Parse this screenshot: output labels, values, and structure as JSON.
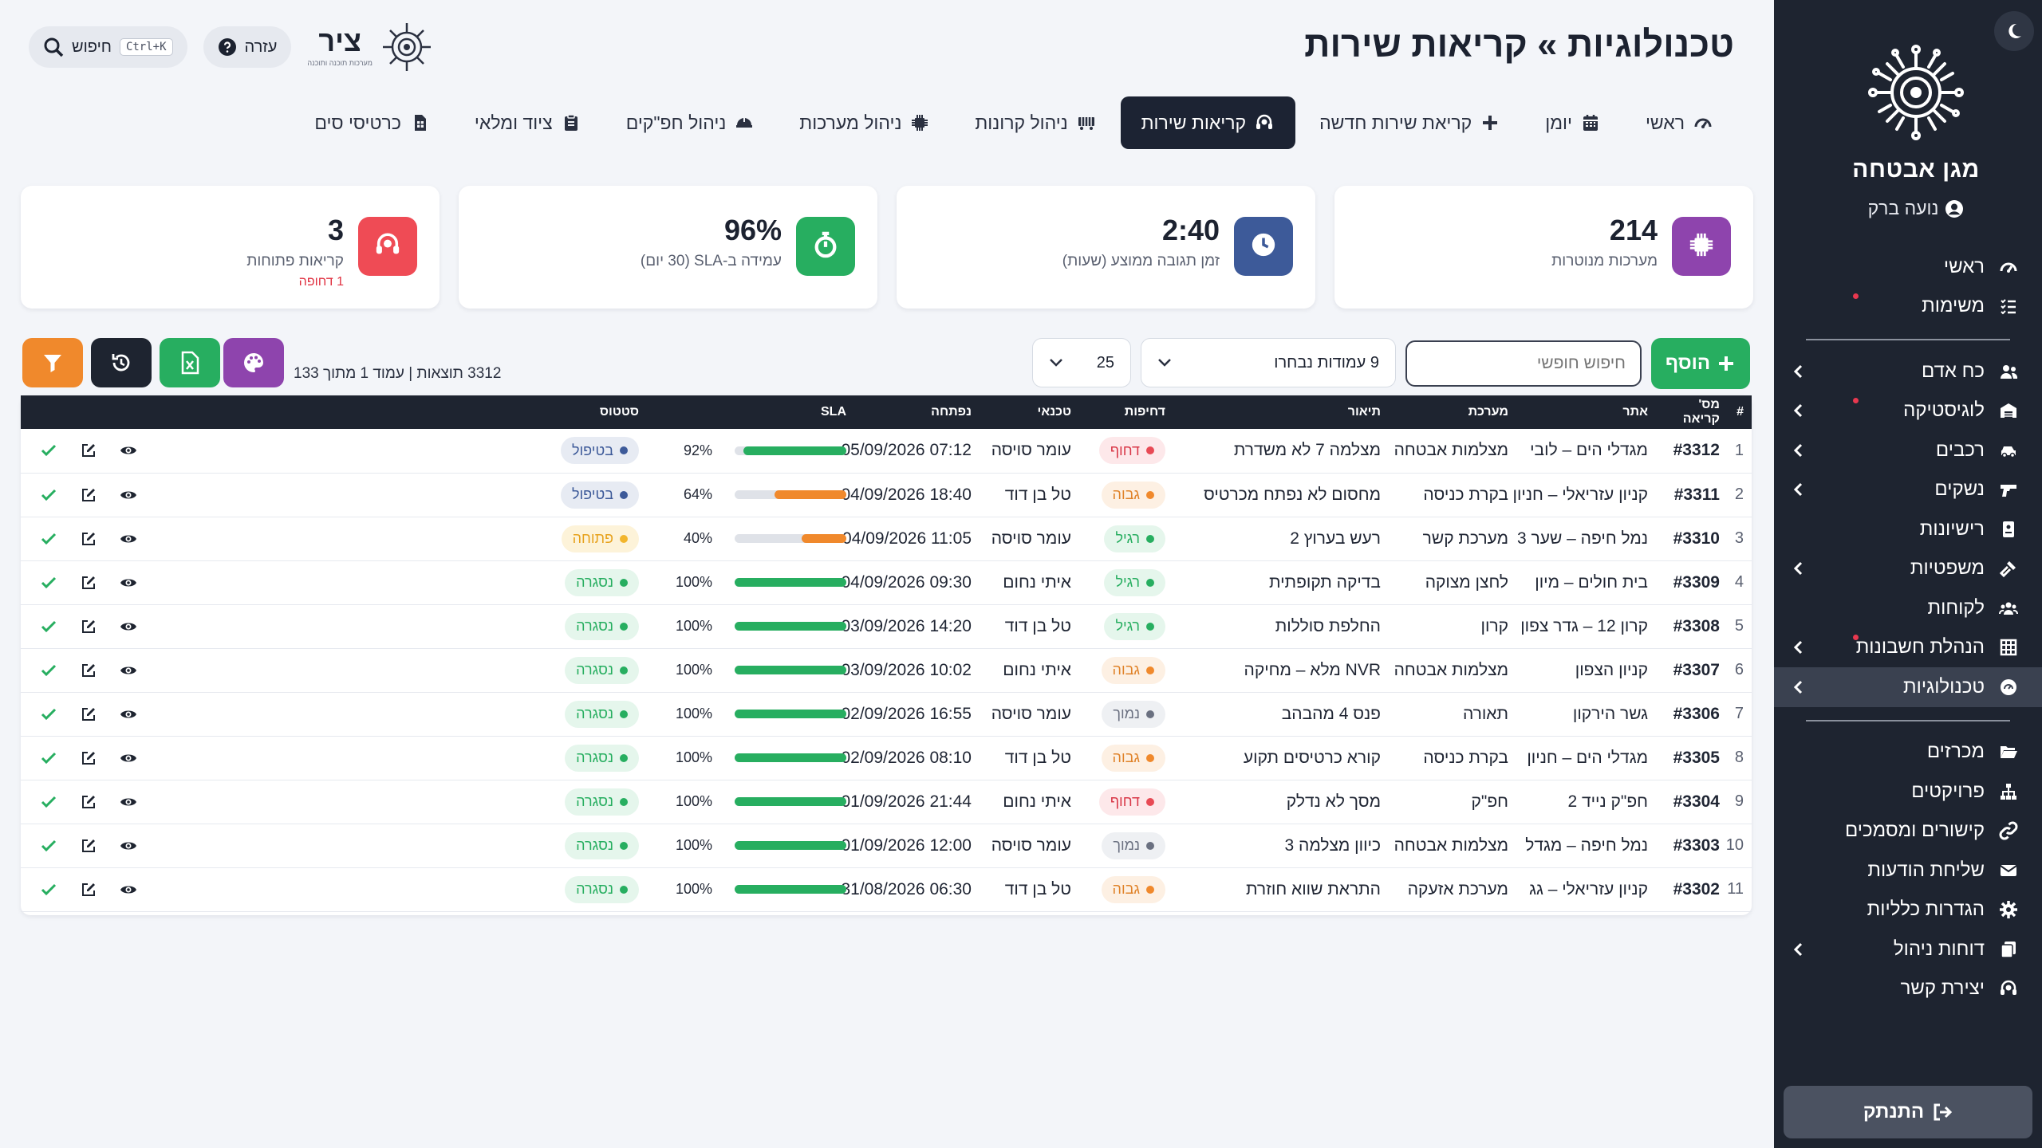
{
  "sidebar": {
    "title": "מגן אבטחה",
    "user": "נועה ברק",
    "items": [
      {
        "label": "ראשי",
        "icon": "gauge-icon",
        "chevron": false,
        "dot": false
      },
      {
        "label": "משימות",
        "icon": "list-check-icon",
        "chevron": false,
        "dot": true
      },
      {
        "divider": true
      },
      {
        "label": "כח אדם",
        "icon": "users-icon",
        "chevron": true,
        "dot": false
      },
      {
        "label": "לוגיסטיקה",
        "icon": "warehouse-icon",
        "chevron": true,
        "dot": true
      },
      {
        "label": "רכבים",
        "icon": "car-icon",
        "chevron": true,
        "dot": false
      },
      {
        "label": "נשקים",
        "icon": "gun-icon",
        "chevron": true,
        "dot": false
      },
      {
        "label": "רישיונות",
        "icon": "id-card-icon",
        "chevron": false,
        "dot": false
      },
      {
        "label": "משפטיות",
        "icon": "gavel-icon",
        "chevron": true,
        "dot": false
      },
      {
        "label": "לקוחות",
        "icon": "clients-icon",
        "chevron": false,
        "dot": false
      },
      {
        "label": "הנהלת חשבונות",
        "icon": "ledger-icon",
        "chevron": true,
        "dot": true
      },
      {
        "label": "טכנולוגיות",
        "icon": "tech-icon",
        "chevron": true,
        "dot": false,
        "active": true
      },
      {
        "divider": true
      },
      {
        "label": "מכרזים",
        "icon": "folder-open-icon",
        "chevron": false,
        "dot": false
      },
      {
        "label": "פרויקטים",
        "icon": "sitemap-icon",
        "chevron": false,
        "dot": false
      },
      {
        "label": "קישורים ומסמכים",
        "icon": "link-icon",
        "chevron": false,
        "dot": false
      },
      {
        "label": "שליחת הודעות",
        "icon": "envelope-icon",
        "chevron": false,
        "dot": false
      },
      {
        "label": "הגדרות כלליות",
        "icon": "gear-icon",
        "chevron": false,
        "dot": false
      },
      {
        "label": "דוחות ניהול",
        "icon": "copy-icon",
        "chevron": true,
        "dot": false
      },
      {
        "label": "יצירת קשר",
        "icon": "headset-icon",
        "chevron": false,
        "dot": false
      }
    ],
    "logout_label": "התנתק"
  },
  "header": {
    "title": "טכנולוגיות » קריאות שירות",
    "brand_name": "ציר",
    "brand_sub": "מערכות תוכנה ותוכנה",
    "help_label": "עזרה",
    "search_label": "חיפוש",
    "search_kbd": "Ctrl+K"
  },
  "tabs": [
    {
      "label": "ראשי",
      "icon": "gauge-icon"
    },
    {
      "label": "יומן",
      "icon": "calendar-icon"
    },
    {
      "label": "קריאת שירות חדשה",
      "icon": "plus-icon"
    },
    {
      "label": "קריאות שירות",
      "icon": "headset-icon",
      "active": true
    },
    {
      "label": "ניהול קרונות",
      "icon": "railcar-icon"
    },
    {
      "label": "ניהול מערכות",
      "icon": "chip-icon"
    },
    {
      "label": "ניהול חפ\"קים",
      "icon": "helmet-icon"
    },
    {
      "label": "ציוד ומלאי",
      "icon": "clipboard-icon"
    },
    {
      "label": "כרטיסי סים",
      "icon": "sim-icon"
    }
  ],
  "cards": [
    {
      "value": "3",
      "label": "קריאות פתוחות",
      "note": "1 דחופה",
      "color": "#ef4b55",
      "icon": "headset-icon"
    },
    {
      "value": "96%",
      "label": "עמידה ב-SLA (30 יום)",
      "note": "",
      "color": "#27ae60",
      "icon": "stopwatch-icon"
    },
    {
      "value": "2:40",
      "label": "זמן תגובה ממוצע (שעות)",
      "note": "",
      "color": "#3d5a99",
      "icon": "clock-icon"
    },
    {
      "value": "214",
      "label": "מערכות מנוטרות",
      "note": "",
      "color": "#8e44ad",
      "icon": "chip-icon"
    }
  ],
  "toolbar": {
    "add_label": "הוסף",
    "search_placeholder": "חיפוש חופשי",
    "columns_label": "9 עמודות נבחרו",
    "page_size": "25",
    "results": "3312 תוצאות | עמוד 1 מתוך 133"
  },
  "colors": {
    "green": "#27ae60",
    "orange": "#f0892c",
    "purple": "#8e44ad",
    "dark": "#1e2430"
  },
  "table": {
    "headers": [
      "#",
      "מס' קריאה",
      "אתר",
      "מערכת",
      "תיאור",
      "דחיפות",
      "טכנאי",
      "נפתחה",
      "SLA",
      "סטטוס",
      ""
    ],
    "rows": [
      {
        "n": "1",
        "id": "#3312",
        "site": "מגדלי הים – לובי",
        "system": "מצלמות אבטחה",
        "desc": "מצלמה 7 לא משדרת",
        "urgency": "דחוף",
        "tech": "עומר סויסה",
        "opened": "07:12 05/09/2026",
        "sla": 92,
        "sla_text": "92%",
        "status": "בטיפול"
      },
      {
        "n": "2",
        "id": "#3311",
        "site": "קניון עזריאלי – חניון",
        "system": "בקרת כניסה",
        "desc": "מחסום לא נפתח מכרטיס",
        "urgency": "גבוה",
        "tech": "טל בן דוד",
        "opened": "18:40 04/09/2026",
        "sla": 64,
        "sla_text": "64%",
        "status": "בטיפול"
      },
      {
        "n": "3",
        "id": "#3310",
        "site": "נמל חיפה – שער 3",
        "system": "מערכת קשר",
        "desc": "רעש בערוץ 2",
        "urgency": "רגיל",
        "tech": "עומר סויסה",
        "opened": "11:05 04/09/2026",
        "sla": 40,
        "sla_text": "40%",
        "status": "פתוחה"
      },
      {
        "n": "4",
        "id": "#3309",
        "site": "בית חולים – מיון",
        "system": "לחצן מצוקה",
        "desc": "בדיקה תקופתית",
        "urgency": "רגיל",
        "tech": "איתי נחום",
        "opened": "09:30 04/09/2026",
        "sla": 100,
        "sla_text": "100%",
        "status": "נסגרה"
      },
      {
        "n": "5",
        "id": "#3308",
        "site": "קרון 12 – גדר צפון",
        "system": "קרון",
        "desc": "החלפת סוללות",
        "urgency": "רגיל",
        "tech": "טל בן דוד",
        "opened": "14:20 03/09/2026",
        "sla": 100,
        "sla_text": "100%",
        "status": "נסגרה"
      },
      {
        "n": "6",
        "id": "#3307",
        "site": "קניון הצפון",
        "system": "מצלמות אבטחה",
        "desc": "NVR מלא – מחיקה",
        "urgency": "גבוה",
        "tech": "איתי נחום",
        "opened": "10:02 03/09/2026",
        "sla": 100,
        "sla_text": "100%",
        "status": "נסגרה"
      },
      {
        "n": "7",
        "id": "#3306",
        "site": "גשר הירקון",
        "system": "תאורה",
        "desc": "פנס 4 מהבהב",
        "urgency": "נמוך",
        "tech": "עומר סויסה",
        "opened": "16:55 02/09/2026",
        "sla": 100,
        "sla_text": "100%",
        "status": "נסגרה"
      },
      {
        "n": "8",
        "id": "#3305",
        "site": "מגדלי הים – חניון",
        "system": "בקרת כניסה",
        "desc": "קורא כרטיסים תקוע",
        "urgency": "גבוה",
        "tech": "טל בן דוד",
        "opened": "08:10 02/09/2026",
        "sla": 100,
        "sla_text": "100%",
        "status": "נסגרה"
      },
      {
        "n": "9",
        "id": "#3304",
        "site": "חפ\"ק נייד 2",
        "system": "חפ\"ק",
        "desc": "מסך לא נדלק",
        "urgency": "דחוף",
        "tech": "איתי נחום",
        "opened": "21:44 01/09/2026",
        "sla": 100,
        "sla_text": "100%",
        "status": "נסגרה"
      },
      {
        "n": "10",
        "id": "#3303",
        "site": "נמל חיפה – מגדל",
        "system": "מצלמות אבטחה",
        "desc": "כיוון מצלמה 3",
        "urgency": "נמוך",
        "tech": "עומר סויסה",
        "opened": "12:00 01/09/2026",
        "sla": 100,
        "sla_text": "100%",
        "status": "נסגרה"
      },
      {
        "n": "11",
        "id": "#3302",
        "site": "קניון עזריאלי – גג",
        "system": "מערכת אזעקה",
        "desc": "התראת שווא חוזרת",
        "urgency": "גבוה",
        "tech": "טל בן דוד",
        "opened": "06:30 31/08/2026",
        "sla": 100,
        "sla_text": "100%",
        "status": "נסגרה"
      }
    ]
  }
}
